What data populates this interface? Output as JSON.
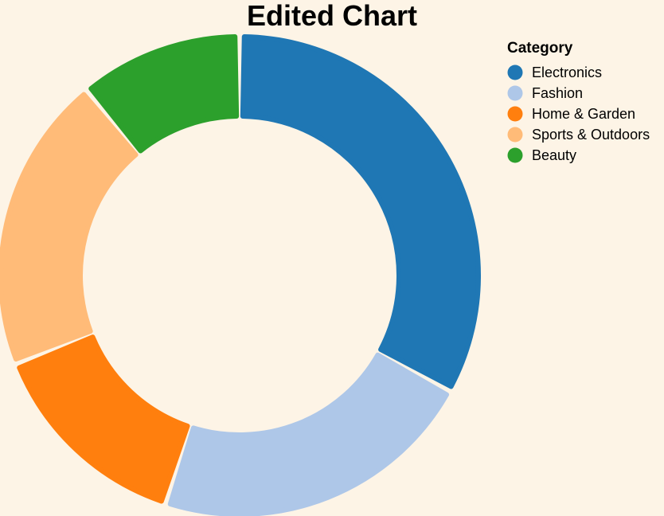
{
  "chart_data": {
    "type": "pie",
    "title": "Edited Chart",
    "legend_title": "Category",
    "legend_position": "top-right",
    "donut": true,
    "categories": [
      "Electronics",
      "Fashion",
      "Home & Garden",
      "Sports & Outdoors",
      "Beauty"
    ],
    "values": [
      33,
      22,
      14,
      20,
      11
    ],
    "colors": [
      "#1f77b4",
      "#aec7e8",
      "#ff7f0e",
      "#ffbb78",
      "#2ca02c"
    ]
  },
  "background_color": "#fdf4e6"
}
